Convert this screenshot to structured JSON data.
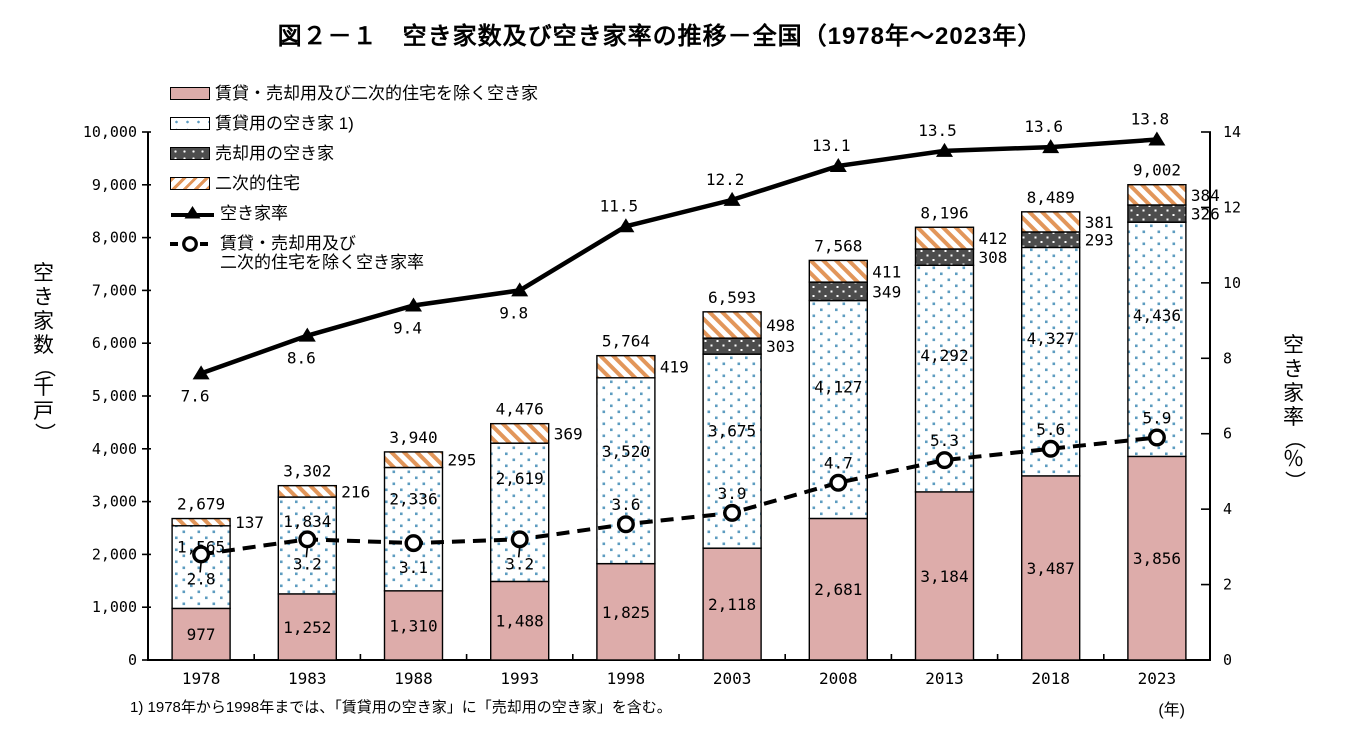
{
  "title": "図２－１　空き家数及び空き家率の推移－全国（1978年～2023年）",
  "footnote": "1) 1978年から1998年までは、「賃貸用の空き家」に「売却用の空き家」を含む。",
  "x_axis_unit": "(年)",
  "left_axis_title": "空き家数（千戸）",
  "right_axis_title": "空き家率（％）",
  "colors": {
    "bar_pink": "#ddacaa",
    "dot_blue": "#5d9cc0",
    "dark_gray": "#4d4d4d",
    "stripe_orange": "#e2965a",
    "line_black": "#000000"
  },
  "legend": {
    "items": [
      {
        "label": "賃貸・売却用及び二次的住宅を除く空き家",
        "swatch": "pink"
      },
      {
        "label": "賃貸用の空き家 1)",
        "swatch": "dots"
      },
      {
        "label": "売却用の空き家",
        "swatch": "dark"
      },
      {
        "label": "二次的住宅",
        "swatch": "stripes"
      },
      {
        "label": "空き家率",
        "swatch": "line-triangle"
      },
      {
        "label": "賃貸・売却用及び",
        "label2": "二次的住宅を除く空き家率",
        "swatch": "line-circle"
      }
    ]
  },
  "chart_data": {
    "type": "bar",
    "subtype": "stacked-bars-with-two-lines",
    "categories": [
      "1978",
      "1983",
      "1988",
      "1993",
      "1998",
      "2003",
      "2008",
      "2013",
      "2018",
      "2023"
    ],
    "bar_series": [
      {
        "name": "賃貸・売却用及び二次的住宅を除く空き家",
        "style": "pink",
        "values": [
          977,
          1252,
          1310,
          1488,
          1825,
          2118,
          2681,
          3184,
          3487,
          3856
        ]
      },
      {
        "name": "賃貸用の空き家",
        "style": "dots",
        "values": [
          1565,
          1834,
          2336,
          2619,
          3520,
          3675,
          4127,
          4292,
          4327,
          4436
        ]
      },
      {
        "name": "売却用の空き家",
        "style": "dark",
        "values": [
          null,
          null,
          null,
          null,
          null,
          303,
          349,
          308,
          293,
          326
        ]
      },
      {
        "name": "二次的住宅",
        "style": "stripes",
        "values": [
          137,
          216,
          295,
          369,
          419,
          498,
          411,
          412,
          381,
          384
        ]
      }
    ],
    "totals": [
      2679,
      3302,
      3940,
      4476,
      5764,
      6593,
      7568,
      8196,
      8489,
      9002
    ],
    "line_series": [
      {
        "name": "空き家率",
        "axis": "right",
        "marker": "triangle",
        "values": [
          7.6,
          8.6,
          9.4,
          9.8,
          11.5,
          12.2,
          13.1,
          13.5,
          13.6,
          13.8
        ]
      },
      {
        "name": "賃貸・売却用及び二次的住宅を除く空き家率",
        "axis": "right",
        "marker": "circle",
        "dashed": true,
        "values": [
          2.8,
          3.2,
          3.1,
          3.2,
          3.6,
          3.9,
          4.7,
          5.3,
          5.6,
          5.9
        ]
      }
    ],
    "left_axis": {
      "title": "空き家数（千戸）",
      "min": 0,
      "max": 10000,
      "step": 1000
    },
    "right_axis": {
      "title": "空き家率（％）",
      "min": 0,
      "max": 14,
      "step": 2
    },
    "grid": false,
    "legend_position": "top-left"
  }
}
